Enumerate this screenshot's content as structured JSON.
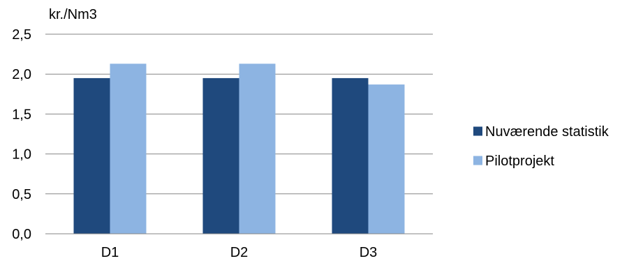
{
  "chart_data": {
    "type": "bar",
    "title": "",
    "unit_label": "kr./Nm3",
    "xlabel": "",
    "ylabel": "",
    "categories": [
      "D1",
      "D2",
      "D3"
    ],
    "series": [
      {
        "name": "Nuværende statistik",
        "values": [
          1.95,
          1.95,
          1.95
        ],
        "color": "#1F497D"
      },
      {
        "name": "Pilotprojekt",
        "values": [
          2.13,
          2.13,
          1.87
        ],
        "color": "#8DB4E2"
      }
    ],
    "ylim": [
      0,
      2.5
    ],
    "yticks": [
      "0,0",
      "0,5",
      "1,0",
      "1,5",
      "2,0",
      "2,5"
    ],
    "grid": true,
    "legend_position": "right",
    "gridline_color": "#868686"
  }
}
